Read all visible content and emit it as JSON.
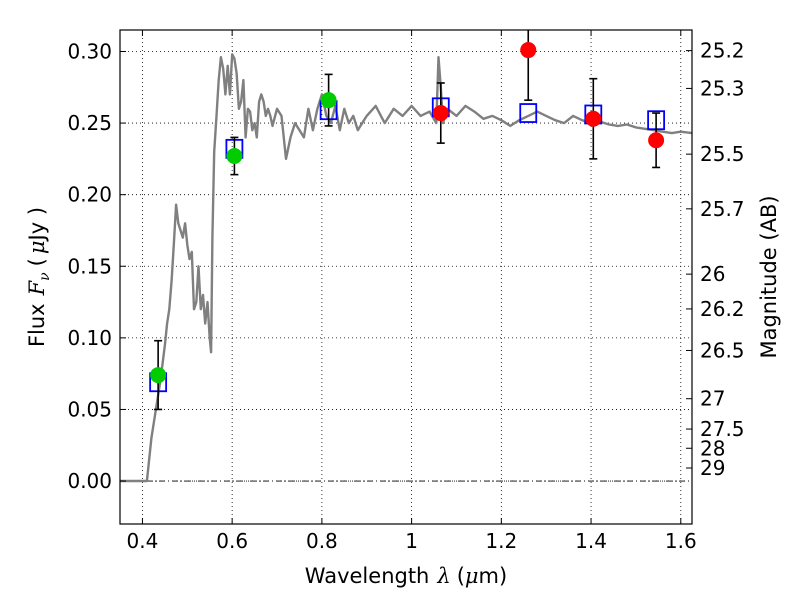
{
  "chart_data": {
    "type": "scatter",
    "xlabel_text": "Wavelength",
    "xlabel_symbol": "λ",
    "xlabel_unit_open": "(",
    "xlabel_unit_mu": "μ",
    "xlabel_unit_rest": "m)",
    "ylabel_text": "Flux",
    "ylabel_symbol": "F",
    "ylabel_sub": "ν",
    "ylabel_unit_open": "(",
    "ylabel_unit_mu": "μ",
    "ylabel_unit_rest": "Jy )",
    "y2label": "Magnitude (AB)",
    "xlim": [
      0.35,
      1.625
    ],
    "ylim": [
      -0.03,
      0.315
    ],
    "grid": true,
    "x_ticks": [
      {
        "value": 0.4,
        "label": "0.4"
      },
      {
        "value": 0.6,
        "label": "0.6"
      },
      {
        "value": 0.8,
        "label": "0.8"
      },
      {
        "value": 1.0,
        "label": "1"
      },
      {
        "value": 1.2,
        "label": "1.2"
      },
      {
        "value": 1.4,
        "label": "1.4"
      },
      {
        "value": 1.6,
        "label": "1.6"
      }
    ],
    "y_ticks": [
      {
        "value": 0.0,
        "label": "0.00"
      },
      {
        "value": 0.05,
        "label": "0.05"
      },
      {
        "value": 0.1,
        "label": "0.10"
      },
      {
        "value": 0.15,
        "label": "0.15"
      },
      {
        "value": 0.2,
        "label": "0.20"
      },
      {
        "value": 0.25,
        "label": "0.25"
      },
      {
        "value": 0.3,
        "label": "0.30"
      }
    ],
    "mag_ticks": [
      {
        "flux": 0.3006,
        "label": "25.2"
      },
      {
        "flux": 0.2742,
        "label": "25.3"
      },
      {
        "flux": 0.2283,
        "label": "25.5"
      },
      {
        "flux": 0.1901,
        "label": "25.7"
      },
      {
        "flux": 0.1445,
        "label": "26"
      },
      {
        "flux": 0.1202,
        "label": "26.2"
      },
      {
        "flux": 0.0912,
        "label": "26.5"
      },
      {
        "flux": 0.0575,
        "label": "27"
      },
      {
        "flux": 0.0363,
        "label": "27.5"
      },
      {
        "flux": 0.0229,
        "label": "28"
      },
      {
        "flux": 0.0091,
        "label": "29"
      }
    ],
    "dash_line_y": 0.0,
    "series": [
      {
        "kind": "model-spectrum",
        "color": "#808080",
        "x": [
          0.35,
          0.41,
          0.42,
          0.43,
          0.44,
          0.45,
          0.455,
          0.46,
          0.465,
          0.47,
          0.475,
          0.48,
          0.485,
          0.49,
          0.495,
          0.5,
          0.505,
          0.51,
          0.515,
          0.52,
          0.525,
          0.53,
          0.535,
          0.54,
          0.545,
          0.55,
          0.553,
          0.556,
          0.56,
          0.565,
          0.57,
          0.575,
          0.58,
          0.585,
          0.59,
          0.595,
          0.6,
          0.605,
          0.61,
          0.615,
          0.62,
          0.625,
          0.63,
          0.635,
          0.64,
          0.645,
          0.65,
          0.655,
          0.66,
          0.665,
          0.67,
          0.675,
          0.68,
          0.685,
          0.69,
          0.7,
          0.71,
          0.72,
          0.73,
          0.74,
          0.75,
          0.76,
          0.77,
          0.78,
          0.79,
          0.8,
          0.81,
          0.82,
          0.83,
          0.84,
          0.85,
          0.86,
          0.87,
          0.88,
          0.9,
          0.92,
          0.94,
          0.96,
          0.98,
          1.0,
          1.02,
          1.04,
          1.055,
          1.06,
          1.065,
          1.07,
          1.08,
          1.1,
          1.12,
          1.14,
          1.16,
          1.18,
          1.2,
          1.22,
          1.24,
          1.26,
          1.28,
          1.3,
          1.32,
          1.34,
          1.36,
          1.38,
          1.4,
          1.42,
          1.44,
          1.46,
          1.48,
          1.5,
          1.52,
          1.54,
          1.56,
          1.58,
          1.6,
          1.625
        ],
        "y": [
          0.0,
          0.0,
          0.03,
          0.05,
          0.07,
          0.095,
          0.11,
          0.12,
          0.14,
          0.165,
          0.193,
          0.18,
          0.175,
          0.17,
          0.18,
          0.165,
          0.155,
          0.16,
          0.12,
          0.125,
          0.15,
          0.12,
          0.13,
          0.11,
          0.125,
          0.1,
          0.09,
          0.17,
          0.23,
          0.255,
          0.28,
          0.296,
          0.288,
          0.27,
          0.29,
          0.27,
          0.298,
          0.295,
          0.285,
          0.26,
          0.265,
          0.28,
          0.24,
          0.26,
          0.258,
          0.245,
          0.25,
          0.24,
          0.265,
          0.27,
          0.265,
          0.255,
          0.26,
          0.255,
          0.248,
          0.26,
          0.255,
          0.225,
          0.24,
          0.25,
          0.245,
          0.24,
          0.26,
          0.245,
          0.26,
          0.27,
          0.255,
          0.25,
          0.262,
          0.245,
          0.26,
          0.25,
          0.255,
          0.245,
          0.255,
          0.262,
          0.25,
          0.26,
          0.255,
          0.262,
          0.255,
          0.258,
          0.25,
          0.296,
          0.275,
          0.25,
          0.26,
          0.255,
          0.262,
          0.258,
          0.253,
          0.255,
          0.252,
          0.248,
          0.252,
          0.255,
          0.258,
          0.255,
          0.252,
          0.25,
          0.255,
          0.252,
          0.25,
          0.251,
          0.249,
          0.248,
          0.249,
          0.247,
          0.246,
          0.245,
          0.244,
          0.243,
          0.244,
          0.243
        ]
      },
      {
        "kind": "model-photometry",
        "marker": "open-square",
        "color": "#0000ff",
        "x": [
          0.435,
          0.605,
          0.815,
          1.065,
          1.26,
          1.405,
          1.545
        ],
        "y": [
          0.069,
          0.232,
          0.259,
          0.261,
          0.257,
          0.256,
          0.252
        ]
      },
      {
        "kind": "observed-space",
        "marker": "filled-circle",
        "color": "#00cc00",
        "x": [
          0.435,
          0.605,
          0.815
        ],
        "y": [
          0.074,
          0.227,
          0.266
        ],
        "err": [
          0.024,
          0.013,
          0.018
        ]
      },
      {
        "kind": "observed-nir",
        "marker": "filled-circle",
        "color": "#ff0000",
        "x": [
          1.065,
          1.26,
          1.405,
          1.545
        ],
        "y": [
          0.257,
          0.301,
          0.253,
          0.238
        ],
        "err": [
          0.021,
          0.035,
          0.028,
          0.019
        ]
      }
    ]
  }
}
